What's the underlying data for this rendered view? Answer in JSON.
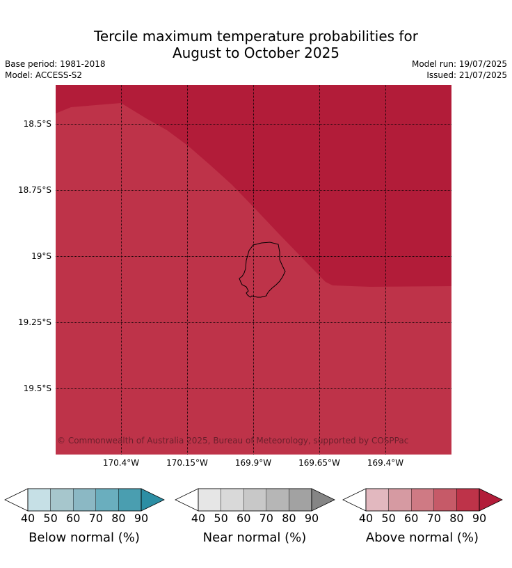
{
  "title": {
    "line1": "Tercile maximum temperature probabilities for",
    "line2": "August to October 2025"
  },
  "meta": {
    "base_period": "Base period: 1981-2018",
    "model": "Model: ACCESS-S2",
    "model_run": "Model run: 19/07/2025",
    "issued": "Issued: 21/07/2025"
  },
  "map": {
    "lat_labels": [
      "18.5°S",
      "18.75°S",
      "19°S",
      "19.25°S",
      "19.5°S"
    ],
    "lon_labels": [
      "170.4°W",
      "170.15°W",
      "169.9°W",
      "169.65°W",
      "169.4°W"
    ],
    "copyright": "© Commonwealth of Australia 2025, Bureau of Meteorology, supported by COSPPac",
    "colors": {
      "above_90": "#b21c39",
      "above_80": "#be3349",
      "coast": "#000000"
    }
  },
  "legends": [
    {
      "label": "Below normal (%)",
      "ticks": [
        "40",
        "50",
        "60",
        "70",
        "80",
        "90"
      ],
      "colors": [
        "#c6e0e6",
        "#a6c6cc",
        "#8bb8c4",
        "#6aaebe",
        "#4a9eb0",
        "#2c8ea4"
      ]
    },
    {
      "label": "Near normal (%)",
      "ticks": [
        "40",
        "50",
        "60",
        "70",
        "80",
        "90"
      ],
      "colors": [
        "#e6e6e6",
        "#d9d9d9",
        "#c8c8c8",
        "#b6b6b6",
        "#a2a2a2",
        "#858585"
      ]
    },
    {
      "label": "Above normal (%)",
      "ticks": [
        "40",
        "50",
        "60",
        "70",
        "80",
        "90"
      ],
      "colors": [
        "#e2b8bf",
        "#d69aa2",
        "#cf7a84",
        "#c65a68",
        "#be3349",
        "#b21c39"
      ]
    }
  ]
}
